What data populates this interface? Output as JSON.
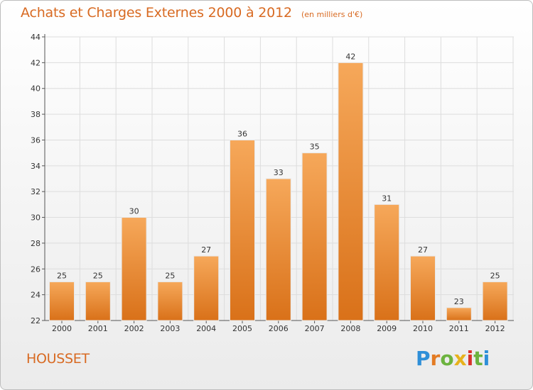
{
  "title": "Achats et Charges Externes 2000 à 2012",
  "unit_note": "(en milliers d'€)",
  "place_name": "HOUSSET",
  "logo": {
    "letters": [
      "P",
      "r",
      "o",
      "x",
      "i",
      "t",
      "i"
    ],
    "colors": [
      "#2f8fd8",
      "#e37b23",
      "#6cb33f",
      "#e7b21c",
      "#d8322a",
      "#6cb33f",
      "#2f8fd8"
    ]
  },
  "colors": {
    "bar_light": "#f6a85a",
    "bar_dark": "#d97119",
    "title": "#d86a22",
    "grid": "#dddddd"
  },
  "chart_data": {
    "type": "bar",
    "categories": [
      "2000",
      "2001",
      "2002",
      "2003",
      "2004",
      "2005",
      "2006",
      "2007",
      "2008",
      "2009",
      "2010",
      "2011",
      "2012"
    ],
    "values": [
      25,
      25,
      30,
      25,
      27,
      36,
      33,
      35,
      42,
      31,
      27,
      23,
      25
    ],
    "ylim": [
      22,
      44
    ],
    "yticks": [
      22,
      24,
      26,
      28,
      30,
      32,
      34,
      36,
      38,
      40,
      42,
      44
    ],
    "grid": true,
    "data_labels": true
  }
}
